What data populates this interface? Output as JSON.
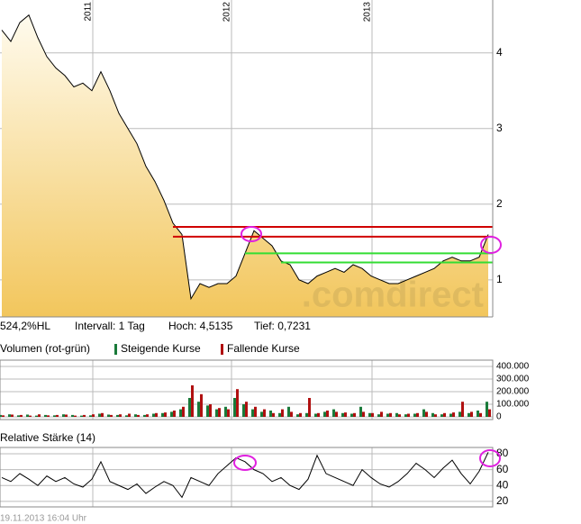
{
  "footer": "19.11.2013 16:04 Uhr",
  "chart_data": [
    {
      "type": "area",
      "color": "#000000",
      "fill_top": "#fffbee",
      "fill_bottom": "#f2c65c",
      "watermark": ".comdirect",
      "stats": [
        "524,2%HL",
        "Intervall: 1 Tag",
        "Hoch: 4,5135",
        "Tief: 0,7231"
      ],
      "values": [
        4.3,
        4.15,
        4.4,
        4.5,
        4.2,
        3.95,
        3.8,
        3.7,
        3.55,
        3.6,
        3.5,
        3.75,
        3.5,
        3.2,
        3.0,
        2.8,
        2.5,
        2.3,
        2.05,
        1.75,
        1.6,
        0.75,
        0.95,
        0.9,
        0.95,
        0.95,
        1.05,
        1.35,
        1.65,
        1.55,
        1.45,
        1.25,
        1.2,
        1.0,
        0.95,
        1.05,
        1.1,
        1.15,
        1.1,
        1.2,
        1.15,
        1.05,
        1.0,
        0.95,
        0.95,
        1.0,
        1.05,
        1.1,
        1.15,
        1.25,
        1.3,
        1.25,
        1.25,
        1.3,
        1.6
      ],
      "ylim": [
        0.51,
        4.52
      ],
      "yticks": [
        1,
        2,
        3,
        4
      ],
      "xticks": [
        {
          "value": 10.1,
          "label": "2011"
        },
        {
          "value": 25.5,
          "label": "2012"
        },
        {
          "value": 41.1,
          "label": "2013"
        }
      ],
      "levels": [
        {
          "value": 1.7,
          "color": "#d00000",
          "start": 19
        },
        {
          "value": 1.57,
          "color": "#d00000",
          "start": 19
        },
        {
          "value": 1.35,
          "color": "#33dd33",
          "start": 27
        },
        {
          "value": 1.23,
          "color": "#33dd33",
          "start": 31
        }
      ],
      "grid": true
    },
    {
      "type": "bar",
      "title": "Volumen (rot-grün)",
      "series": [
        {
          "name": "Steigende Kurse",
          "color": "#1a7a3a",
          "values": [
            15000,
            20000,
            12000,
            18000,
            10000,
            15000,
            12000,
            20000,
            15000,
            10000,
            12000,
            25000,
            18000,
            15000,
            12000,
            20000,
            15000,
            25000,
            30000,
            40000,
            60000,
            150000,
            120000,
            90000,
            60000,
            80000,
            150000,
            100000,
            60000,
            40000,
            50000,
            30000,
            80000,
            20000,
            30000,
            25000,
            40000,
            60000,
            30000,
            25000,
            80000,
            30000,
            20000,
            25000,
            30000,
            20000,
            25000,
            60000,
            30000,
            20000,
            25000,
            40000,
            30000,
            50000,
            120000
          ]
        },
        {
          "name": "Fallende Kurse",
          "color": "#b01010",
          "values": [
            12000,
            18000,
            15000,
            10000,
            20000,
            12000,
            15000,
            18000,
            10000,
            15000,
            20000,
            30000,
            15000,
            20000,
            25000,
            15000,
            20000,
            30000,
            35000,
            50000,
            80000,
            250000,
            180000,
            100000,
            70000,
            60000,
            220000,
            120000,
            80000,
            60000,
            30000,
            60000,
            40000,
            30000,
            150000,
            30000,
            50000,
            40000,
            35000,
            30000,
            40000,
            30000,
            40000,
            30000,
            20000,
            25000,
            30000,
            40000,
            20000,
            30000,
            35000,
            120000,
            40000,
            30000,
            60000
          ]
        }
      ],
      "ylim": [
        0,
        400000
      ],
      "yticks": [
        0,
        {
          "value": 100000,
          "label": "100.000"
        },
        {
          "value": 200000,
          "label": "200.000"
        },
        {
          "value": 300000,
          "label": "300.000"
        },
        {
          "value": 400000,
          "label": "400.000"
        }
      ],
      "grid": true
    },
    {
      "type": "line",
      "title": "Relative Stärke (14)",
      "color": "#000000",
      "values": [
        50,
        45,
        55,
        48,
        40,
        52,
        45,
        50,
        42,
        38,
        48,
        70,
        45,
        40,
        35,
        42,
        30,
        38,
        45,
        40,
        25,
        50,
        45,
        40,
        55,
        65,
        75,
        70,
        60,
        55,
        45,
        50,
        40,
        35,
        48,
        78,
        55,
        50,
        45,
        40,
        60,
        50,
        42,
        38,
        45,
        55,
        68,
        60,
        50,
        62,
        72,
        55,
        42,
        58,
        82
      ],
      "ylim": [
        13,
        88
      ],
      "yticks": [
        20,
        40,
        60,
        80
      ],
      "grid": true
    }
  ]
}
